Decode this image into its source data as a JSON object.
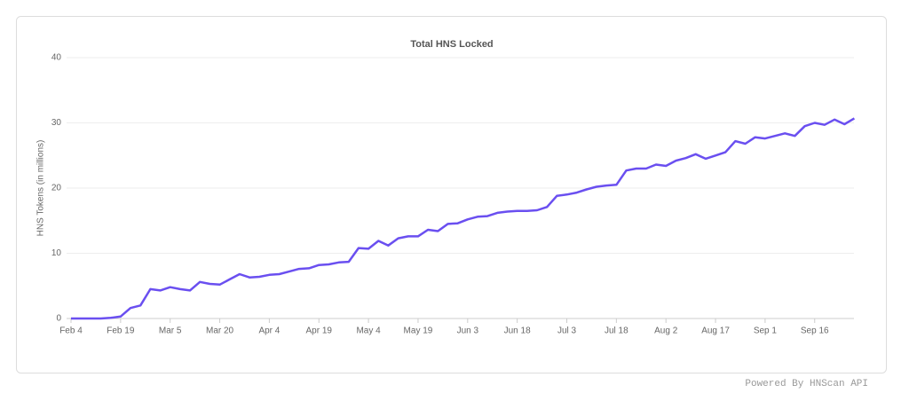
{
  "chart_data": {
    "type": "line",
    "title": "Total HNS Locked",
    "y_label": "HNS Tokens (in millions)",
    "footer": "Powered By HNScan API",
    "color": "#6a4ff0",
    "grid": true,
    "categories": [
      "Feb 4",
      null,
      null,
      null,
      null,
      "Feb 19",
      null,
      null,
      null,
      null,
      "Mar 5",
      null,
      null,
      null,
      null,
      "Mar 20",
      null,
      null,
      null,
      null,
      "Apr 4",
      null,
      null,
      null,
      null,
      "Apr 19",
      null,
      null,
      null,
      null,
      "May 4",
      null,
      null,
      null,
      null,
      "May 19",
      null,
      null,
      null,
      null,
      "Jun 3",
      null,
      null,
      null,
      null,
      "Jun 18",
      null,
      null,
      null,
      null,
      "Jul 3",
      null,
      null,
      null,
      null,
      "Jul 18",
      null,
      null,
      null,
      null,
      "Aug 2",
      null,
      null,
      null,
      null,
      "Aug 17",
      null,
      null,
      null,
      null,
      "Sep 1",
      null,
      null,
      null,
      null,
      "Sep 16",
      null,
      null,
      null,
      null
    ],
    "values": [
      0,
      0,
      0,
      0,
      0.1,
      0.3,
      1.6,
      2.0,
      4.5,
      4.3,
      4.8,
      4.5,
      4.3,
      5.6,
      5.3,
      5.2,
      6.0,
      6.8,
      6.3,
      6.4,
      6.7,
      6.8,
      7.2,
      7.6,
      7.7,
      8.2,
      8.3,
      8.6,
      8.7,
      10.8,
      10.7,
      11.9,
      11.2,
      12.3,
      12.6,
      12.6,
      13.6,
      13.4,
      14.5,
      14.6,
      15.2,
      15.6,
      15.7,
      16.2,
      16.4,
      16.5,
      16.5,
      16.6,
      17.1,
      18.8,
      19.0,
      19.3,
      19.8,
      20.2,
      20.4,
      20.5,
      22.7,
      23.0,
      23.0,
      23.6,
      23.4,
      24.2,
      24.6,
      25.2,
      24.5,
      25.0,
      25.5,
      27.2,
      26.8,
      27.8,
      27.6,
      28.0,
      28.4,
      28.0,
      29.5,
      30.0,
      29.7,
      30.5,
      29.8,
      30.7
    ],
    "ylim": [
      0,
      40
    ],
    "yticks": [
      0,
      10,
      20,
      30,
      40
    ]
  }
}
